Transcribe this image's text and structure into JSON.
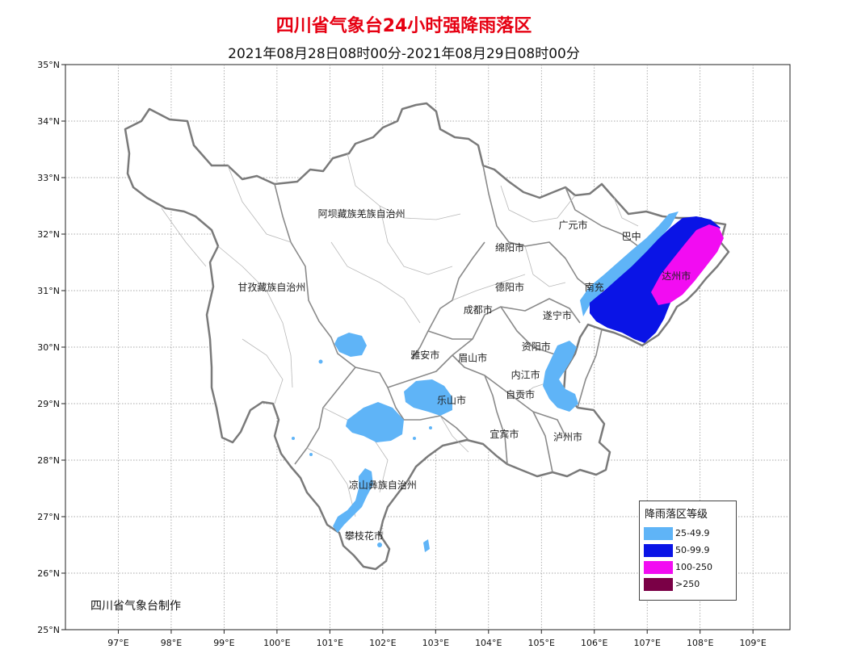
{
  "header": {
    "title": "四川省气象台24小时强降雨落区",
    "subtitle": "2021年08月28日08时00分-2021年08月29日08时00分"
  },
  "axes": {
    "lat_labels": [
      "35°N",
      "34°N",
      "33°N",
      "32°N",
      "31°N",
      "30°N",
      "29°N",
      "28°N",
      "27°N",
      "26°N",
      "25°N"
    ],
    "lon_labels": [
      "97°E",
      "98°E",
      "99°E",
      "100°E",
      "101°E",
      "102°E",
      "103°E",
      "104°E",
      "105°E",
      "106°E",
      "107°E",
      "108°E",
      "109°E"
    ]
  },
  "places": [
    {
      "name": "阿坝藏族羌族自治州",
      "lon": 101.6,
      "lat": 32.3
    },
    {
      "name": "广元市",
      "lon": 105.6,
      "lat": 32.1
    },
    {
      "name": "巴中",
      "lon": 106.7,
      "lat": 31.9
    },
    {
      "name": "绵阳市",
      "lon": 104.4,
      "lat": 31.7
    },
    {
      "name": "甘孜藏族自治州",
      "lon": 99.9,
      "lat": 31.0
    },
    {
      "name": "德阳市",
      "lon": 104.4,
      "lat": 31.0
    },
    {
      "name": "南充",
      "lon": 106.0,
      "lat": 31.0
    },
    {
      "name": "达州市",
      "lon": 107.55,
      "lat": 31.2
    },
    {
      "name": "成都市",
      "lon": 103.8,
      "lat": 30.6
    },
    {
      "name": "遂宁市",
      "lon": 105.3,
      "lat": 30.5
    },
    {
      "name": "雅安市",
      "lon": 102.8,
      "lat": 29.8
    },
    {
      "name": "眉山市",
      "lon": 103.7,
      "lat": 29.75
    },
    {
      "name": "资阳市",
      "lon": 104.9,
      "lat": 29.95
    },
    {
      "name": "内江市",
      "lon": 104.7,
      "lat": 29.45
    },
    {
      "name": "乐山市",
      "lon": 103.3,
      "lat": 29.0
    },
    {
      "name": "自贡市",
      "lon": 104.6,
      "lat": 29.1
    },
    {
      "name": "宜宾市",
      "lon": 104.3,
      "lat": 28.4
    },
    {
      "name": "泸州市",
      "lon": 105.5,
      "lat": 28.35
    },
    {
      "name": "凉山彝族自治州",
      "lon": 102.0,
      "lat": 27.5
    },
    {
      "name": "攀枝花市",
      "lon": 101.65,
      "lat": 26.6
    }
  ],
  "credit": "四川省气象台制作",
  "legend": {
    "title": "降雨落区等级",
    "items": [
      {
        "label": "25-49.9",
        "color": "#5fb4f7"
      },
      {
        "label": "50-99.9",
        "color": "#0a14e6"
      },
      {
        "label": "100-250",
        "color": "#f20cf2"
      },
      {
        "label": ">250",
        "color": "#7a0046"
      }
    ]
  }
}
